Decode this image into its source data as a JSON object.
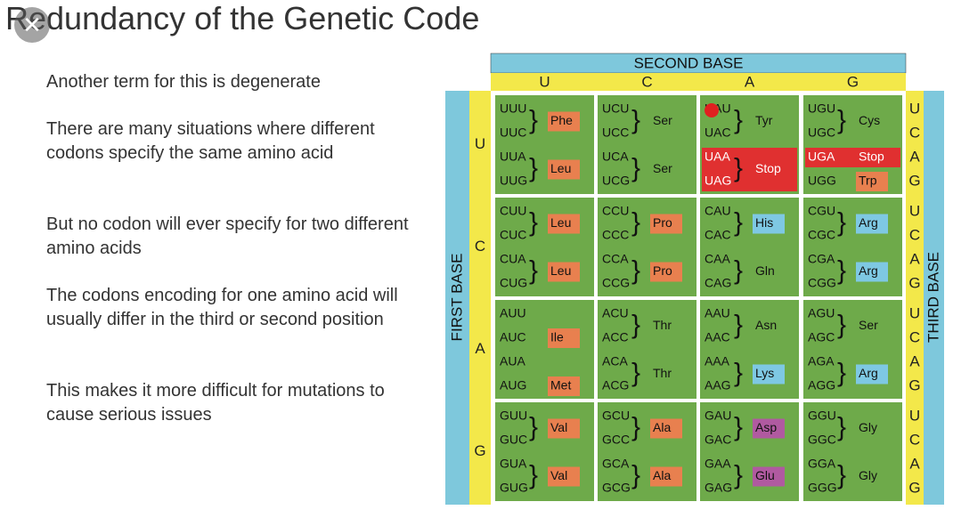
{
  "title": "Redundancy of the Genetic Code",
  "paragraphs": [
    "Another term for this is degenerate",
    "There are many situations where different codons specify the same amino acid",
    "But no codon will ever specify for two different amino acids",
    "The codons encoding for one amino acid will usually differ in the third or second position",
    "This makes it more difficult for mutations to cause serious issues"
  ],
  "table": {
    "second_base_label": "SECOND BASE",
    "first_base_label": "FIRST BASE",
    "third_base_label": "THIRD BASE",
    "second_bases": [
      "U",
      "C",
      "A",
      "G"
    ],
    "rows": [
      {
        "first_base": "U",
        "third_bases": [
          "U",
          "C",
          "A",
          "G"
        ],
        "cells": [
          [
            {
              "codons": [
                "UUU",
                "UUC"
              ],
              "amino": "Phe",
              "highlight": "#e8804f"
            },
            {
              "codons": [
                "UUA",
                "UUG"
              ],
              "amino": "Leu",
              "highlight": "#e8804f"
            }
          ],
          [
            {
              "codons": [
                "UCU",
                "UCC"
              ],
              "amino": "Ser"
            },
            {
              "codons": [
                "UCA",
                "UCG"
              ],
              "amino": "Ser"
            }
          ],
          [
            {
              "codons": [
                "UAU",
                "UAC"
              ],
              "amino": "Tyr"
            },
            {
              "codons": [
                "UAA",
                "UAG"
              ],
              "amino": "Stop",
              "highlight": "#e03030",
              "band": true
            }
          ],
          [
            {
              "codons": [
                "UGU",
                "UGC"
              ],
              "amino": "Cys"
            },
            {
              "codons": [
                "UGA"
              ],
              "amino": "Stop",
              "highlight": "#e03030",
              "band": true
            },
            {
              "codons": [
                "UGG"
              ],
              "amino": "Trp",
              "highlight": "#e8804f"
            }
          ]
        ]
      },
      {
        "first_base": "C",
        "third_bases": [
          "U",
          "C",
          "A",
          "G"
        ],
        "cells": [
          [
            {
              "codons": [
                "CUU",
                "CUC"
              ],
              "amino": "Leu",
              "highlight": "#e8804f"
            },
            {
              "codons": [
                "CUA",
                "CUG"
              ],
              "amino": "Leu",
              "highlight": "#e8804f"
            }
          ],
          [
            {
              "codons": [
                "CCU",
                "CCC"
              ],
              "amino": "Pro",
              "highlight": "#e8804f"
            },
            {
              "codons": [
                "CCA",
                "CCG"
              ],
              "amino": "Pro",
              "highlight": "#e8804f"
            }
          ],
          [
            {
              "codons": [
                "CAU",
                "CAC"
              ],
              "amino": "His",
              "highlight": "#7ec8e3"
            },
            {
              "codons": [
                "CAA",
                "CAG"
              ],
              "amino": "Gln"
            }
          ],
          [
            {
              "codons": [
                "CGU",
                "CGC"
              ],
              "amino": "Arg",
              "highlight": "#7ec8e3"
            },
            {
              "codons": [
                "CGA",
                "CGG"
              ],
              "amino": "Arg",
              "highlight": "#7ec8e3"
            }
          ]
        ]
      },
      {
        "first_base": "A",
        "third_bases": [
          "U",
          "C",
          "A",
          "G"
        ],
        "cells": [
          [
            {
              "codons": [
                "AUU",
                "AUC",
                "AUA"
              ],
              "amino": "Ile",
              "highlight": "#e8804f"
            },
            {
              "codons": [
                "AUG"
              ],
              "amino": "Met",
              "highlight": "#e8804f"
            }
          ],
          [
            {
              "codons": [
                "ACU",
                "ACC"
              ],
              "amino": "Thr"
            },
            {
              "codons": [
                "ACA",
                "ACG"
              ],
              "amino": "Thr"
            }
          ],
          [
            {
              "codons": [
                "AAU",
                "AAC"
              ],
              "amino": "Asn"
            },
            {
              "codons": [
                "AAA",
                "AAG"
              ],
              "amino": "Lys",
              "highlight": "#7ec8e3"
            }
          ],
          [
            {
              "codons": [
                "AGU",
                "AGC"
              ],
              "amino": "Ser"
            },
            {
              "codons": [
                "AGA",
                "AGG"
              ],
              "amino": "Arg",
              "highlight": "#7ec8e3"
            }
          ]
        ]
      },
      {
        "first_base": "G",
        "third_bases": [
          "U",
          "C",
          "A",
          "G"
        ],
        "cells": [
          [
            {
              "codons": [
                "GUU",
                "GUC"
              ],
              "amino": "Val",
              "highlight": "#e8804f"
            },
            {
              "codons": [
                "GUA",
                "GUG"
              ],
              "amino": "Val",
              "highlight": "#e8804f"
            }
          ],
          [
            {
              "codons": [
                "GCU",
                "GCC"
              ],
              "amino": "Ala",
              "highlight": "#e8804f"
            },
            {
              "codons": [
                "GCA",
                "GCG"
              ],
              "amino": "Ala",
              "highlight": "#e8804f"
            }
          ],
          [
            {
              "codons": [
                "GAU",
                "GAC"
              ],
              "amino": "Asp",
              "highlight": "#b05aa0"
            },
            {
              "codons": [
                "GAA",
                "GAG"
              ],
              "amino": "Glu",
              "highlight": "#b05aa0"
            }
          ],
          [
            {
              "codons": [
                "GGU",
                "GGC"
              ],
              "amino": "Gly"
            },
            {
              "codons": [
                "GGA",
                "GGG"
              ],
              "amino": "Gly"
            }
          ]
        ]
      }
    ]
  }
}
